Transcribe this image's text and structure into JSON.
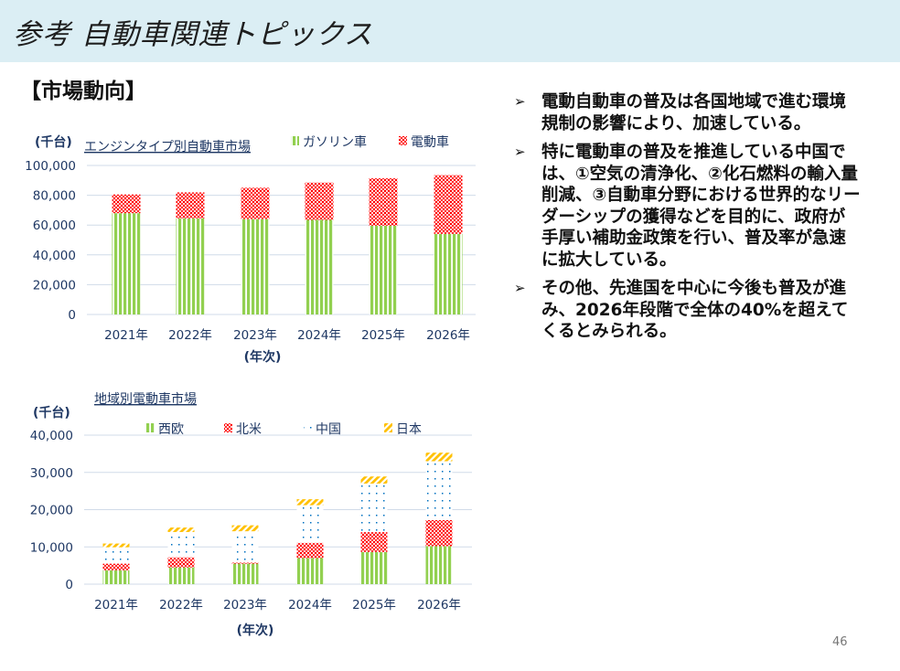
{
  "header": {
    "title": "参考 自動車関連トピックス"
  },
  "section_title": "【市場動向】",
  "bullets": [
    "電動自動車の普及は各国地域で進む環境規制の影響により、加速している。",
    "特に電動車の普及を推進している中国では、①空気の清浄化、②化石燃料の輸入量削減、③自動車分野における世界的なリーダーシップの獲得などを目的に、政府が手厚い補助金政策を行い、普及率が急速に拡大している。",
    "その他、先進国を中心に今後も普及が進み、2026年段階で全体の40%を超えてくるとみられる。"
  ],
  "bullet_icon": "arrowhead-bullet",
  "page_number": "46",
  "chart_data": [
    {
      "type": "bar",
      "stacked": true,
      "title": "エンジンタイプ別自動車市場",
      "ylabel": "(千台)",
      "xlabel": "(年次)",
      "categories": [
        "2021年",
        "2022年",
        "2023年",
        "2024年",
        "2025年",
        "2026年"
      ],
      "ylim": [
        0,
        100000
      ],
      "yticks": [
        "0",
        "20,000",
        "40,000",
        "60,000",
        "80,000",
        "100,000"
      ],
      "grid": true,
      "legend": "top",
      "series": [
        {
          "name": "ガソリン車",
          "values": [
            68000,
            64500,
            64000,
            63500,
            59500,
            54000
          ],
          "color": "#92d050",
          "pattern": "vertical-stripes"
        },
        {
          "name": "電動車",
          "values": [
            12500,
            17500,
            21000,
            25000,
            32000,
            39500
          ],
          "color": "#ff0000",
          "pattern": "dots"
        }
      ]
    },
    {
      "type": "bar",
      "stacked": true,
      "title": "地域別電動車市場",
      "ylabel": "(千台)",
      "xlabel": "(年次)",
      "categories": [
        "2021年",
        "2022年",
        "2023年",
        "2024年",
        "2025年",
        "2026年"
      ],
      "ylim": [
        0,
        40000
      ],
      "yticks": [
        "0",
        "10,000",
        "20,000",
        "30,000",
        "40,000"
      ],
      "grid": true,
      "legend": "top",
      "series": [
        {
          "name": "西欧",
          "values": [
            3700,
            4500,
            5500,
            7000,
            8600,
            10200
          ],
          "color": "#92d050",
          "pattern": "vertical-stripes"
        },
        {
          "name": "北米",
          "values": [
            1800,
            2700,
            300,
            4100,
            5400,
            7000
          ],
          "color": "#ff0000",
          "pattern": "dots"
        },
        {
          "name": "中国",
          "values": [
            4400,
            6800,
            8400,
            10100,
            13000,
            15800
          ],
          "color": "#0070c0",
          "pattern": "sparse-dots"
        },
        {
          "name": "日本",
          "values": [
            1000,
            1200,
            1600,
            1600,
            1900,
            2300
          ],
          "color": "#ffc000",
          "pattern": "diagonal-stripes"
        }
      ]
    }
  ]
}
